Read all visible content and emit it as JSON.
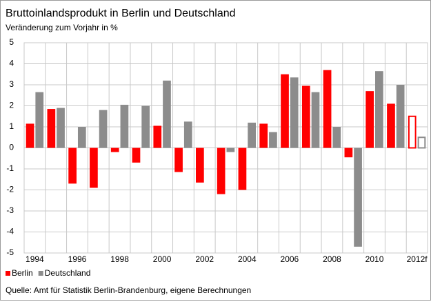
{
  "chart_data": {
    "type": "bar",
    "title": "Bruttoinlandsprodukt in Berlin und Deutschland",
    "subtitle": "Veränderung zum Vorjahr in %",
    "source": "Quelle: Amt für Statistik Berlin-Brandenburg, eigene Berechnungen",
    "categories": [
      "1994",
      null,
      "1996",
      null,
      "1998",
      null,
      "2000",
      null,
      "2002",
      null,
      "2004",
      null,
      "2006",
      null,
      "2008",
      null,
      "2010",
      null,
      "2012f"
    ],
    "series": [
      {
        "name": "Berlin",
        "color": "#ff0000",
        "values": [
          1.15,
          1.85,
          -1.7,
          -1.9,
          -0.2,
          -0.7,
          1.05,
          -1.15,
          -1.65,
          -2.2,
          -2.0,
          1.15,
          3.5,
          2.95,
          3.7,
          -0.45,
          2.7,
          2.1,
          1.5
        ]
      },
      {
        "name": "Deutschland",
        "color": "#8c8c8c",
        "values": [
          2.65,
          1.9,
          1.0,
          1.8,
          2.05,
          2.0,
          3.2,
          1.25,
          0.0,
          -0.2,
          1.2,
          0.75,
          3.35,
          2.65,
          1.0,
          -4.7,
          3.65,
          3.0,
          0.5
        ]
      }
    ],
    "ylim": [
      -5,
      5
    ],
    "yticks": [
      -5,
      -4,
      -3,
      -2,
      -1,
      0,
      1,
      2,
      3,
      4,
      5
    ],
    "grid": true
  }
}
